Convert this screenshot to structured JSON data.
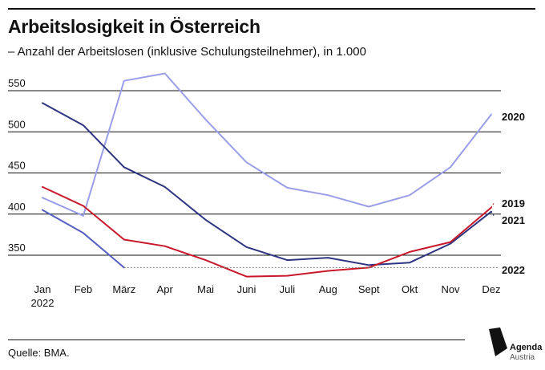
{
  "header": {
    "title": "Arbeitslosigkeit in Österreich",
    "subtitle": "– Anzahl der Arbeitslosen (inklusive Schulungsteilnehmer), in 1.000"
  },
  "footer": {
    "source": "Quelle: BMA."
  },
  "logo": {
    "line1": "Agenda",
    "line2": "Austria"
  },
  "chart_data": {
    "type": "line",
    "categories": [
      "Jan",
      "Feb",
      "März",
      "Apr",
      "Mai",
      "Juni",
      "Juli",
      "Aug",
      "Sept",
      "Okt",
      "Nov",
      "Dez"
    ],
    "category_sublabels": {
      "Jan": "2022"
    },
    "ylim": [
      330,
      575
    ],
    "yticks": [
      350,
      400,
      450,
      500,
      550
    ],
    "grid": "horizontal",
    "series": [
      {
        "name": "2020",
        "color": "#9a9ee8",
        "values": [
          420,
          398,
          562,
          571,
          515,
          463,
          432,
          423,
          409,
          423,
          457,
          521
        ]
      },
      {
        "name": "2021",
        "color": "#2d3480",
        "values": [
          535,
          508,
          457,
          433,
          393,
          360,
          344,
          347,
          338,
          341,
          364,
          403
        ]
      },
      {
        "name": "2019",
        "color": "#c8182a",
        "values": [
          433,
          410,
          369,
          361,
          344,
          324,
          325,
          331,
          335,
          354,
          366,
          408
        ]
      },
      {
        "name": "2022",
        "color": "#5560c0",
        "values": [
          405,
          377,
          335,
          null,
          null,
          null,
          null,
          null,
          null,
          null,
          null,
          null
        ],
        "dotted_level": 335
      }
    ]
  }
}
